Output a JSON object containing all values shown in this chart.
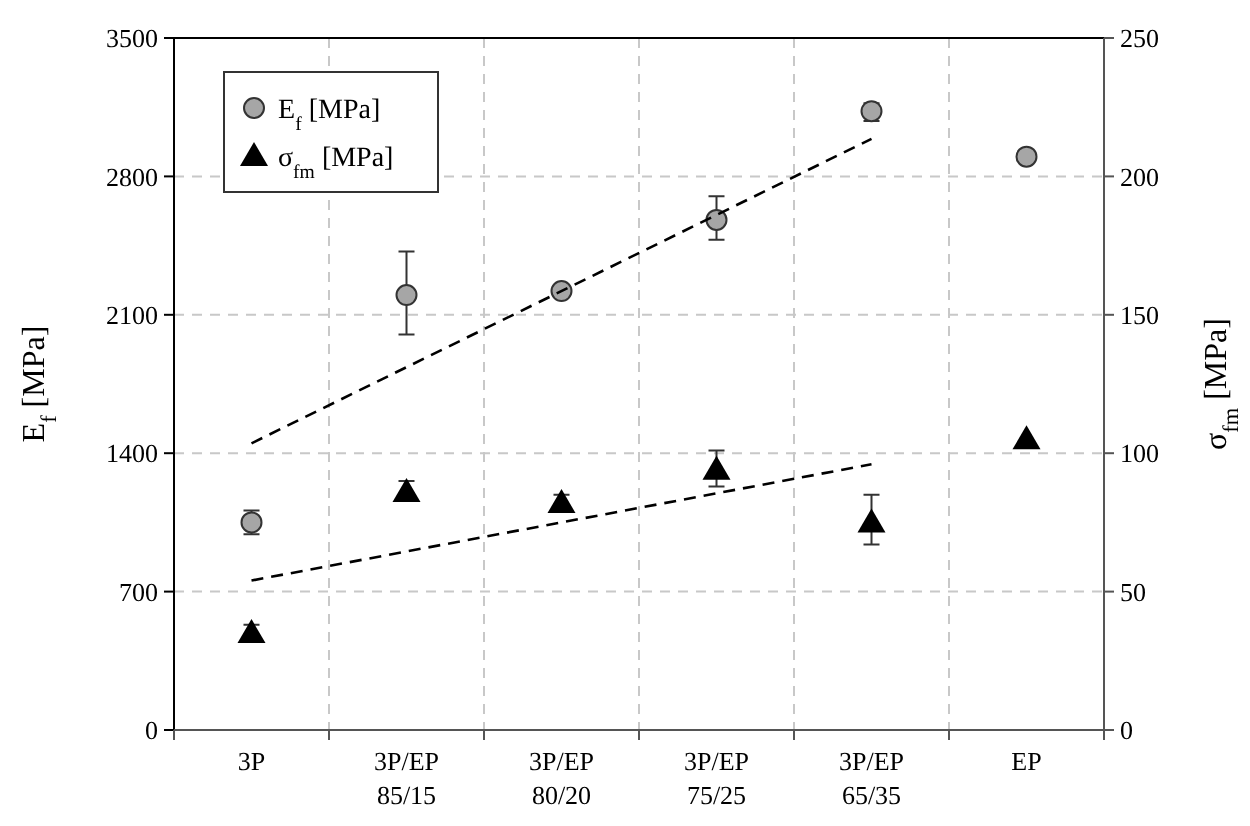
{
  "chart_data": {
    "type": "scatter",
    "categories": [
      "3P",
      "3P/EP 85/15",
      "3P/EP 80/20",
      "3P/EP 75/25",
      "3P/EP 65/35",
      "EP"
    ],
    "ylabel": "E$_{f}$ [MPa]",
    "y2label": "σ$_{fm}$ [MPa]",
    "ylim": [
      0,
      3500
    ],
    "yticks": [
      0,
      700,
      1400,
      2100,
      2800,
      3500
    ],
    "y2lim": [
      0,
      250
    ],
    "y2ticks": [
      0,
      50,
      100,
      150,
      200,
      250
    ],
    "grid": true,
    "legend": "top left",
    "series": [
      {
        "name": "E$_{f}$ [MPa]",
        "marker": "circle",
        "color": "#a6a6a6",
        "values": [
          1050,
          2200,
          2220,
          2580,
          3130,
          2900
        ],
        "errors": [
          [
            990,
            1110
          ],
          [
            2000,
            2420
          ],
          [
            2200,
            2240
          ],
          [
            2480,
            2700
          ],
          [
            3080,
            3170
          ],
          null
        ]
      },
      {
        "name": "σ$_{fm}$ [MPa]",
        "marker": "triangle",
        "color": "#000000",
        "axis": "y2",
        "values": [
          35,
          86,
          82,
          94,
          75,
          105
        ],
        "errors": [
          [
            33,
            38
          ],
          [
            83,
            90
          ],
          [
            79,
            85
          ],
          [
            88,
            101
          ],
          [
            67,
            85
          ],
          null
        ]
      },
      {
        "type": "line",
        "color": "#000000",
        "line_style": "dashed",
        "marker": "none",
        "x": [
          "3P",
          "3P/EP 65/35"
        ],
        "values": [
          1450,
          2990
        ]
      },
      {
        "type": "line",
        "color": "#000000",
        "line_style": "dashed",
        "marker": "none",
        "axis": "y2",
        "x": [
          "3P",
          "3P/EP 65/35"
        ],
        "values": [
          54,
          96
        ]
      }
    ]
  }
}
